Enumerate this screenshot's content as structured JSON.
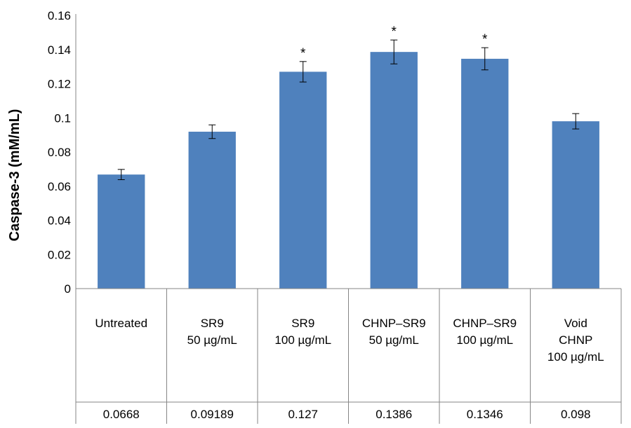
{
  "chart_data": {
    "type": "bar",
    "title": "",
    "xlabel": "",
    "ylabel": "Caspase-3 (mM/mL)",
    "ylim": [
      0,
      0.16
    ],
    "yticks": [
      "0",
      "0.02",
      "0.04",
      "0.06",
      "0.08",
      "0.1",
      "0.12",
      "0.14",
      "0.16"
    ],
    "grid": false,
    "bar_color": "#4f81bd",
    "categories": [
      [
        "Untreated"
      ],
      [
        "SR9",
        "50 µg/mL"
      ],
      [
        "SR9",
        "100 µg/mL"
      ],
      [
        "CHNP–SR9",
        "50 µg/mL"
      ],
      [
        "CHNP–SR9",
        "100 µg/mL"
      ],
      [
        "Void",
        "CHNP",
        "100 µg/mL"
      ]
    ],
    "values": [
      0.0668,
      0.09189,
      0.127,
      0.1386,
      0.1346,
      0.098
    ],
    "value_labels": [
      "0.0668",
      "0.09189",
      "0.127",
      "0.1386",
      "0.1346",
      "0.098"
    ],
    "errors": [
      0.003,
      0.004,
      0.006,
      0.007,
      0.0065,
      0.0045
    ],
    "significance": [
      "",
      "",
      "*",
      "*",
      "*",
      ""
    ]
  }
}
